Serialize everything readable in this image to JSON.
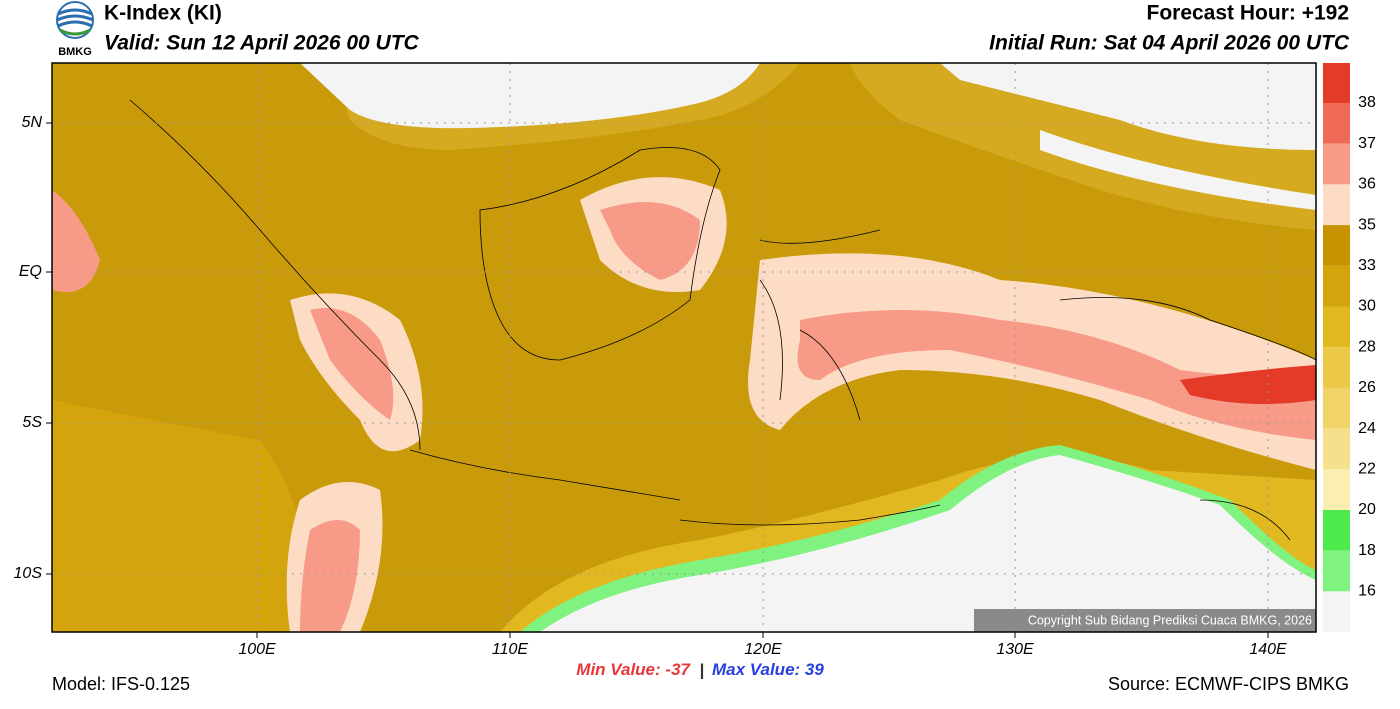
{
  "header": {
    "title": "K-Index (KI)",
    "valid": "Valid: Sun 12 April 2026 00 UTC",
    "forecast_hour": "Forecast Hour: +192",
    "initial_run": "Initial Run: Sat 04 April 2026 00 UTC",
    "logo_text": "BMKG"
  },
  "map": {
    "lat_labels": [
      "5N",
      "EQ",
      "5S",
      "10S"
    ],
    "lon_labels": [
      "100E",
      "110E",
      "120E",
      "130E",
      "140E"
    ],
    "copyright": "Copyright Sub Bidang Prediksi Cuaca BMKG, 2026"
  },
  "colorbar": {
    "labels": [
      38,
      37,
      36,
      35,
      33,
      30,
      28,
      26,
      24,
      22,
      20,
      18,
      16
    ],
    "colors": [
      "#e43a28",
      "#f06a58",
      "#f89a88",
      "#fddcc6",
      "#c79200",
      "#d4a40c",
      "#e2b820",
      "#ebc846",
      "#f0d468",
      "#f5e08c",
      "#faeeb0",
      "#4cea4c",
      "#80f280",
      "#f4f4f4"
    ]
  },
  "footer": {
    "min_label": "Min Value:",
    "min_value": -37,
    "separator": "|",
    "max_label": "Max Value:",
    "max_value": 39,
    "model": "Model: IFS-0.125",
    "source": "Source: ECMWF-CIPS BMKG"
  }
}
